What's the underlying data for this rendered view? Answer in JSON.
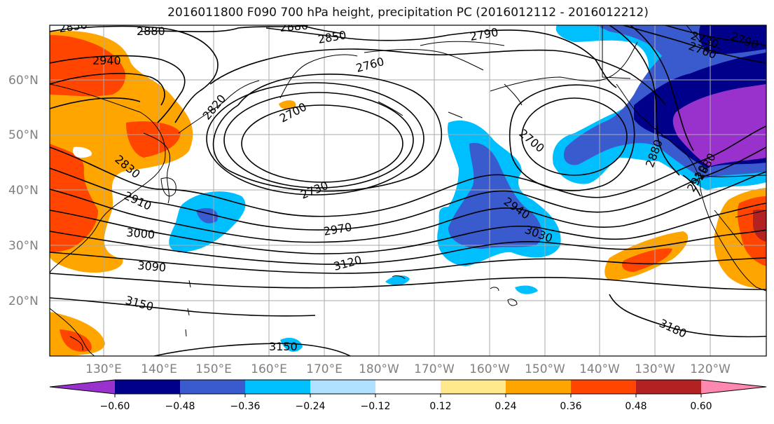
{
  "title": "2016011800 F090 700 hPa height, precipitation PC (2016012112 - 2016012212)",
  "latitude_labels": [
    "60°N",
    "50°N",
    "40°N",
    "30°N",
    "20°N"
  ],
  "longitude_labels": [
    "130°E",
    "140°E",
    "150°E",
    "160°E",
    "170°E",
    "180°W",
    "170°W",
    "160°W",
    "150°W",
    "140°W",
    "130°W",
    "120°W"
  ],
  "contour_labels": [
    "2850",
    "2880",
    "2880",
    "2850",
    "2790",
    "2730",
    "2790",
    "2760",
    "2760",
    "2940",
    "2820",
    "2700",
    "2700",
    "2880",
    "2910",
    "2830",
    "2730",
    "2910",
    "2880",
    "2940",
    "2970",
    "3030",
    "3000",
    "3120",
    "3090",
    "3150",
    "3180",
    "3150"
  ],
  "colorbar": {
    "ticks": [
      "−0.60",
      "−0.48",
      "−0.36",
      "−0.24",
      "−0.12",
      "0.12",
      "0.24",
      "0.36",
      "0.48",
      "0.60"
    ],
    "colors": [
      "#9932cc",
      "#00008b",
      "#3a5bcd",
      "#00bfff",
      "#b0e0ff",
      "#ffffff",
      "#ffe98c",
      "#ffa500",
      "#ff4500",
      "#b22222",
      "#ff88b0"
    ]
  },
  "colors": {
    "strong_negative": "#9932cc",
    "negative_dark": "#00008b",
    "negative_mid": "#3a5bcd",
    "negative_light": "#00bfff",
    "positive_light": "#ffa500",
    "positive_mid": "#ff4500",
    "positive_dark": "#b22222",
    "gridline": "#aaaaaa"
  }
}
